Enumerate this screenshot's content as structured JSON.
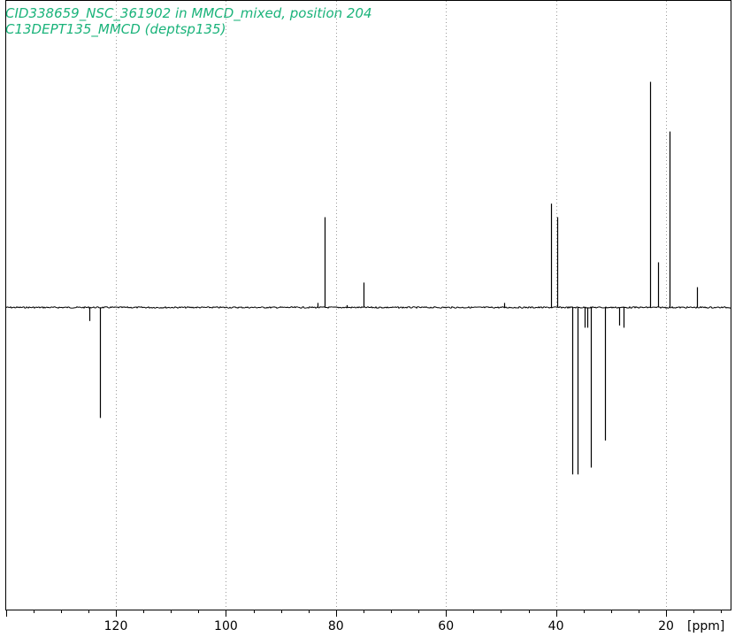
{
  "chart_data": {
    "type": "line",
    "title": "CID338659_NSC_361902 in MMCD_mixed, position 204",
    "subtitle": "C13DEPT135_MMCD (deptsp135)",
    "xlabel": "[ppm]",
    "ylabel": "",
    "xlim": [
      140,
      7
    ],
    "x_reversed": true,
    "ylim": [
      -1.35,
      1.35
    ],
    "grid": "vertical dotted",
    "x_ticks": [
      120,
      100,
      80,
      60,
      40,
      20
    ],
    "x_tick_labels": [
      "120",
      "100",
      "80",
      "60",
      "40",
      "20"
    ],
    "title_color": "#1ab37a",
    "line_color": "#000000",
    "series": [
      {
        "peaks": [
          {
            "ppm": 124.8,
            "intensity": -0.06
          },
          {
            "ppm": 122.9,
            "intensity": -0.49
          },
          {
            "ppm": 83.3,
            "intensity": 0.02
          },
          {
            "ppm": 82.1,
            "intensity": 0.4
          },
          {
            "ppm": 78.0,
            "intensity": 0.01
          },
          {
            "ppm": 75.0,
            "intensity": 0.11
          },
          {
            "ppm": 49.5,
            "intensity": 0.02
          },
          {
            "ppm": 40.9,
            "intensity": 0.46
          },
          {
            "ppm": 39.7,
            "intensity": 0.4
          },
          {
            "ppm": 37.0,
            "intensity": -0.74
          },
          {
            "ppm": 36.1,
            "intensity": -0.74
          },
          {
            "ppm": 34.8,
            "intensity": -0.09
          },
          {
            "ppm": 34.3,
            "intensity": -0.09
          },
          {
            "ppm": 33.6,
            "intensity": -0.71
          },
          {
            "ppm": 31.1,
            "intensity": -0.59
          },
          {
            "ppm": 28.6,
            "intensity": -0.08
          },
          {
            "ppm": 27.7,
            "intensity": -0.09
          },
          {
            "ppm": 22.9,
            "intensity": 1.0
          },
          {
            "ppm": 21.4,
            "intensity": 0.2
          },
          {
            "ppm": 19.3,
            "intensity": 0.78
          },
          {
            "ppm": 14.3,
            "intensity": 0.09
          }
        ]
      }
    ]
  }
}
